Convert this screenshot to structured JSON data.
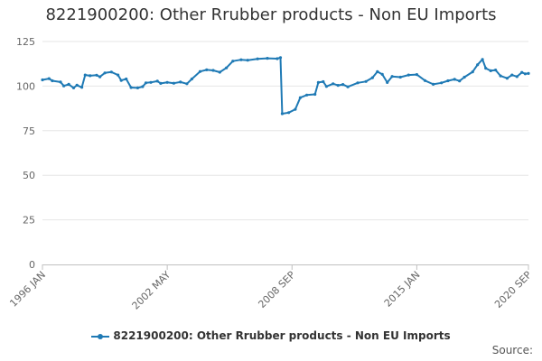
{
  "chart_data": {
    "type": "line",
    "title": "8221900200: Other Rrubber products - Non EU Imports",
    "xlabel": "",
    "ylabel": "",
    "x_ticks": [
      "1996 JAN",
      "2002 MAY",
      "2008 SEP",
      "2015 JAN",
      "2020 SEP"
    ],
    "y_ticks": [
      0,
      25,
      50,
      75,
      100,
      125
    ],
    "ylim": [
      0,
      125
    ],
    "xlim": [
      "1996-01",
      "2020-09"
    ],
    "grid": "horizontal",
    "legend": "bottom",
    "series": [
      {
        "name": "8221900200: Other Rrubber products - Non EU Imports",
        "color": "#1f7ab5",
        "points": [
          [
            "1996-01",
            103.5
          ],
          [
            "1996-05",
            104.2
          ],
          [
            "1996-07",
            103.0
          ],
          [
            "1996-12",
            102.3
          ],
          [
            "1997-02",
            100.1
          ],
          [
            "1997-05",
            101.0
          ],
          [
            "1997-08",
            99.0
          ],
          [
            "1997-10",
            100.5
          ],
          [
            "1998-01",
            99.3
          ],
          [
            "1998-03",
            106.2
          ],
          [
            "1998-06",
            105.8
          ],
          [
            "1998-10",
            106.1
          ],
          [
            "1998-12",
            105.2
          ],
          [
            "1999-03",
            107.4
          ],
          [
            "1999-07",
            107.9
          ],
          [
            "1999-11",
            106.2
          ],
          [
            "2000-01",
            103.2
          ],
          [
            "2000-04",
            104.0
          ],
          [
            "2000-07",
            99.2
          ],
          [
            "2000-11",
            99.0
          ],
          [
            "2001-02",
            99.7
          ],
          [
            "2001-04",
            101.8
          ],
          [
            "2001-07",
            102.1
          ],
          [
            "2001-11",
            102.8
          ],
          [
            "2002-01",
            101.5
          ],
          [
            "2002-05",
            102.1
          ],
          [
            "2002-09",
            101.6
          ],
          [
            "2003-01",
            102.3
          ],
          [
            "2003-05",
            101.3
          ],
          [
            "2003-08",
            104.0
          ],
          [
            "2004-01",
            108.2
          ],
          [
            "2004-05",
            109.1
          ],
          [
            "2004-09",
            108.8
          ],
          [
            "2005-01",
            107.8
          ],
          [
            "2005-05",
            110.2
          ],
          [
            "2005-09",
            114.0
          ],
          [
            "2006-02",
            114.8
          ],
          [
            "2006-06",
            114.5
          ],
          [
            "2006-12",
            115.3
          ],
          [
            "2007-06",
            115.6
          ],
          [
            "2007-12",
            115.4
          ],
          [
            "2008-02",
            116.0
          ],
          [
            "2008-03",
            84.5
          ],
          [
            "2008-07",
            85.1
          ],
          [
            "2008-11",
            87.0
          ],
          [
            "2009-02",
            93.5
          ],
          [
            "2009-06",
            95.0
          ],
          [
            "2009-11",
            95.4
          ],
          [
            "2010-01",
            102.0
          ],
          [
            "2010-04",
            102.5
          ],
          [
            "2010-06",
            99.8
          ],
          [
            "2010-10",
            101.3
          ],
          [
            "2011-01",
            100.4
          ],
          [
            "2011-04",
            100.9
          ],
          [
            "2011-07",
            99.6
          ],
          [
            "2012-01",
            101.8
          ],
          [
            "2012-06",
            102.6
          ],
          [
            "2012-10",
            104.7
          ],
          [
            "2013-01",
            108.1
          ],
          [
            "2013-04",
            106.6
          ],
          [
            "2013-07",
            102.0
          ],
          [
            "2013-10",
            105.4
          ],
          [
            "2014-03",
            105.0
          ],
          [
            "2014-08",
            106.2
          ],
          [
            "2015-01",
            106.5
          ],
          [
            "2015-06",
            103.1
          ],
          [
            "2015-11",
            101.0
          ],
          [
            "2016-04",
            101.8
          ],
          [
            "2016-08",
            103.0
          ],
          [
            "2016-12",
            103.8
          ],
          [
            "2017-03",
            102.9
          ],
          [
            "2017-06",
            105.0
          ],
          [
            "2017-11",
            108.0
          ],
          [
            "2018-02",
            112.0
          ],
          [
            "2018-05",
            115.0
          ],
          [
            "2018-07",
            110.0
          ],
          [
            "2018-10",
            108.6
          ],
          [
            "2019-01",
            109.0
          ],
          [
            "2019-04",
            105.7
          ],
          [
            "2019-08",
            104.4
          ],
          [
            "2019-11",
            106.2
          ],
          [
            "2020-02",
            105.3
          ],
          [
            "2020-05",
            107.7
          ],
          [
            "2020-07",
            106.9
          ],
          [
            "2020-09",
            107.1
          ]
        ]
      }
    ]
  },
  "source_label": "Source:"
}
